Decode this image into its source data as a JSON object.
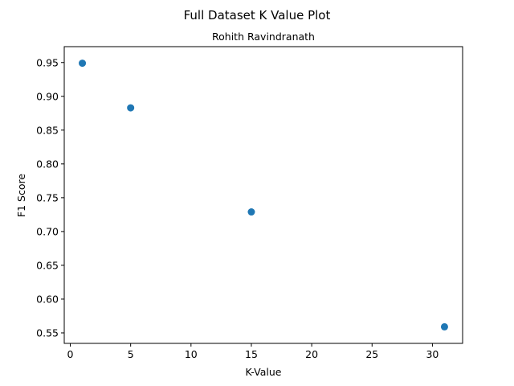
{
  "chart_data": {
    "type": "scatter",
    "title": "Full Dataset K Value Plot",
    "subtitle": "Rohith Ravindranath",
    "xlabel": "K-Value",
    "ylabel": "F1 Score",
    "x": [
      1,
      5,
      15,
      31
    ],
    "y": [
      0.949,
      0.883,
      0.729,
      0.559
    ],
    "xlim": [
      -0.5,
      32.5
    ],
    "ylim": [
      0.5345,
      0.9735
    ],
    "xticks": [
      0,
      5,
      10,
      15,
      20,
      25,
      30
    ],
    "yticks": [
      0.55,
      0.6,
      0.65,
      0.7,
      0.75,
      0.8,
      0.85,
      0.9,
      0.95
    ],
    "xtick_labels": [
      "0",
      "5",
      "10",
      "15",
      "20",
      "25",
      "30"
    ],
    "ytick_labels": [
      "0.55",
      "0.60",
      "0.65",
      "0.70",
      "0.75",
      "0.80",
      "0.85",
      "0.90",
      "0.95"
    ],
    "grid": false,
    "marker_color": "#1f77b4"
  }
}
